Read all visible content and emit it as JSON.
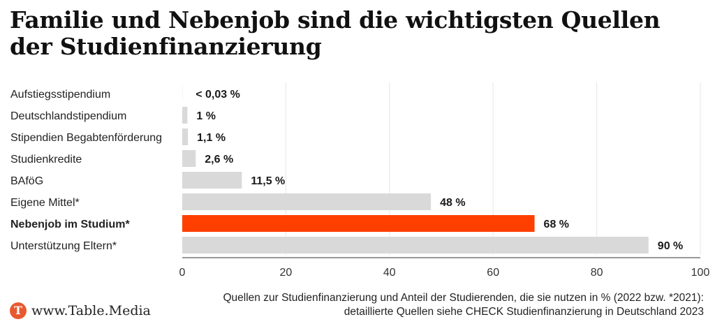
{
  "title": "Familie und Nebenjob sind die wichtigsten Quellen der Studienfinanzierung",
  "brand": {
    "logo_letter": "T",
    "name": "www.Table.Media",
    "logo_color": "#e8592f"
  },
  "source_note": "Quellen zur Studienfinanzierung und Anteil der Studierenden, die sie nutzen in % (2022 bzw. *2021): detaillierte Quellen siehe CHECK Studienfinanzierung in Deutschland 2023",
  "chart_data": {
    "type": "bar",
    "orientation": "horizontal",
    "categories": [
      "Aufstiegsstipendium",
      "Deutschlandstipendium",
      "Stipendien Begabtenförderung",
      "Studienkredite",
      "BAföG",
      "Eigene Mittel*",
      "Nebenjob im Studium*",
      "Unterstützung Eltern*"
    ],
    "values": [
      0.03,
      1,
      1.1,
      2.6,
      11.5,
      48,
      68,
      90
    ],
    "value_labels": [
      "< 0,03 %",
      "1 %",
      "1,1 %",
      "2,6 %",
      "11,5 %",
      "48 %",
      "68 %",
      "90 %"
    ],
    "highlight_index": 6,
    "bar_color": "#d9d9d9",
    "highlight_color": "#ff3f00",
    "xlim": [
      0,
      100
    ],
    "xticks": [
      0,
      20,
      40,
      60,
      80,
      100
    ],
    "grid": true
  }
}
